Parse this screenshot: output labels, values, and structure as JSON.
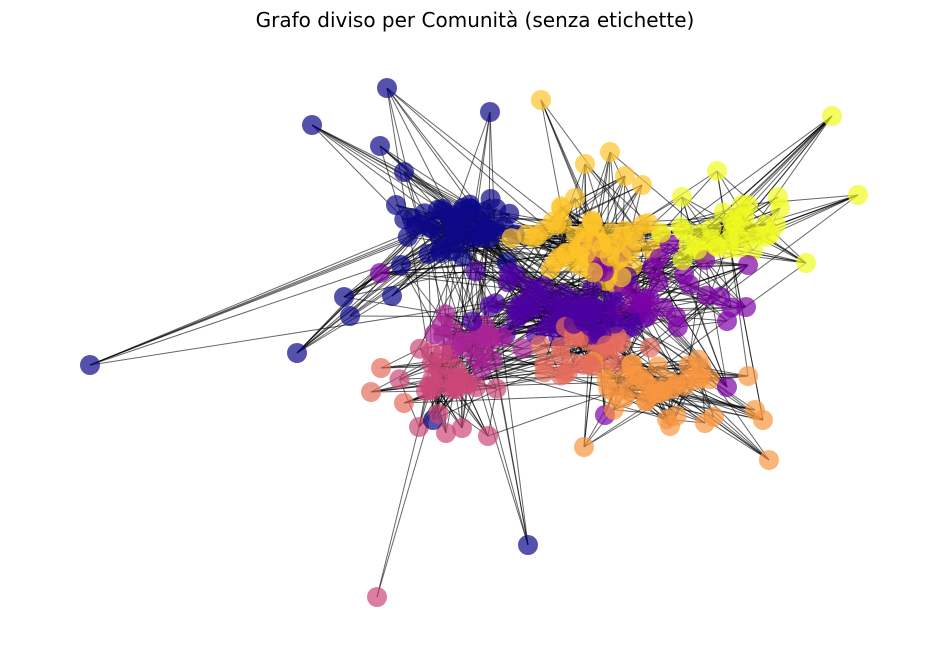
{
  "figure": {
    "title": "Grafo diviso per Comunità (senza etichette)"
  },
  "graph": {
    "layout": "force-directed",
    "node_labels_shown": false,
    "node_count_estimate": 360,
    "edge_color": "#000000",
    "node_alpha": 0.7,
    "communities": [
      {
        "id": 0,
        "color": "#0d0887"
      },
      {
        "id": 1,
        "color": "#4c02a1"
      },
      {
        "id": 2,
        "color": "#7e03a8"
      },
      {
        "id": 3,
        "color": "#a92395"
      },
      {
        "id": 4,
        "color": "#cc4778"
      },
      {
        "id": 5,
        "color": "#e66c5c"
      },
      {
        "id": 6,
        "color": "#f89540"
      },
      {
        "id": 7,
        "color": "#fdc328"
      },
      {
        "id": 8,
        "color": "#f0f921"
      }
    ]
  }
}
